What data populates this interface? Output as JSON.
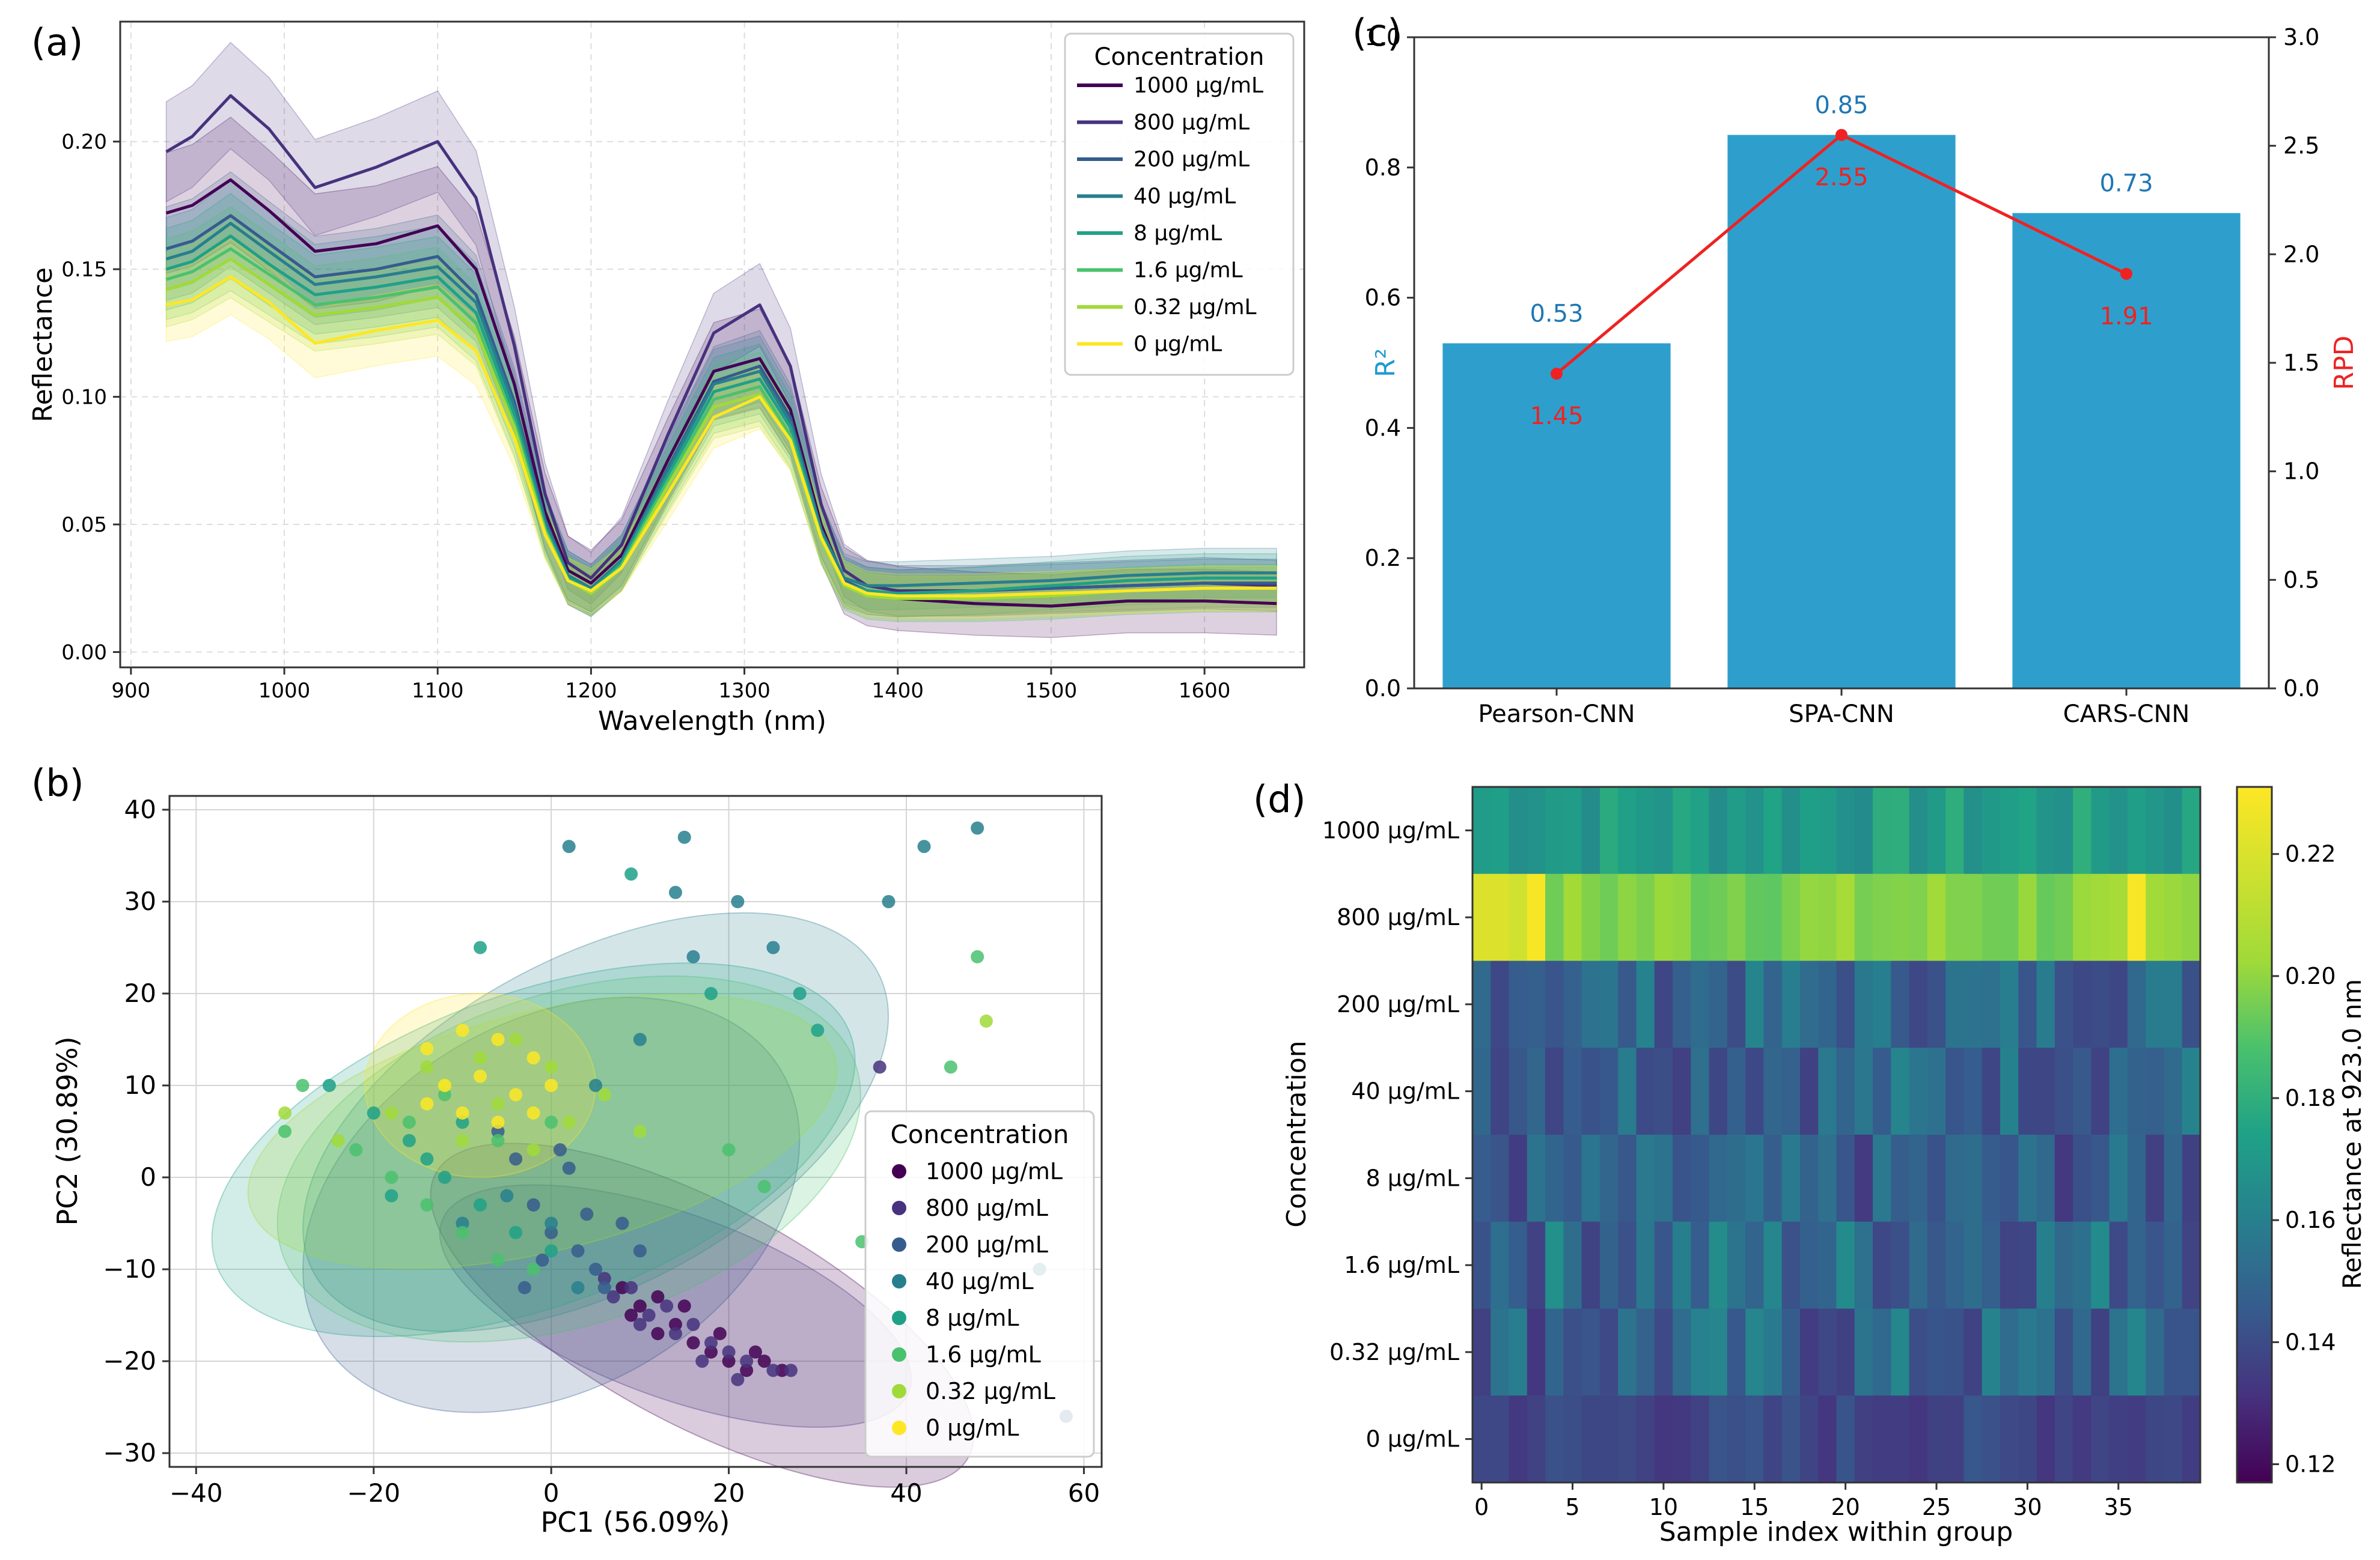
{
  "chart_data": [
    {
      "panel": "(a)",
      "type": "line",
      "xlabel": "Wavelength (nm)",
      "ylabel": "Reflectance",
      "xlim": [
        893,
        1665
      ],
      "ylim": [
        -0.006,
        0.247
      ],
      "xticks": [
        900,
        1000,
        1100,
        1200,
        1300,
        1400,
        1500,
        1600
      ],
      "yticks": [
        0.0,
        0.05,
        0.1,
        0.15,
        0.2
      ],
      "grid": true,
      "legend_title": "Concentration",
      "legend_position": "top-right",
      "x": [
        923,
        940,
        965,
        990,
        1020,
        1060,
        1100,
        1125,
        1150,
        1170,
        1185,
        1200,
        1220,
        1250,
        1280,
        1310,
        1330,
        1350,
        1365,
        1380,
        1400,
        1450,
        1500,
        1550,
        1600,
        1647
      ],
      "series": [
        {
          "name": "1000 µg/mL",
          "color": "#440154",
          "values": [
            0.172,
            0.175,
            0.185,
            0.173,
            0.157,
            0.16,
            0.167,
            0.15,
            0.105,
            0.055,
            0.032,
            0.027,
            0.038,
            0.075,
            0.11,
            0.115,
            0.095,
            0.05,
            0.028,
            0.023,
            0.021,
            0.019,
            0.018,
            0.02,
            0.02,
            0.019
          ],
          "band": 0.022
        },
        {
          "name": "800 µg/mL",
          "color": "#46327e",
          "values": [
            0.196,
            0.202,
            0.218,
            0.205,
            0.182,
            0.19,
            0.2,
            0.178,
            0.12,
            0.062,
            0.035,
            0.029,
            0.042,
            0.085,
            0.125,
            0.136,
            0.112,
            0.058,
            0.032,
            0.026,
            0.024,
            0.024,
            0.025,
            0.026,
            0.027,
            0.026
          ],
          "band": 0.017
        },
        {
          "name": "200 µg/mL",
          "color": "#365c8d",
          "values": [
            0.158,
            0.161,
            0.171,
            0.16,
            0.147,
            0.15,
            0.155,
            0.14,
            0.098,
            0.052,
            0.03,
            0.025,
            0.036,
            0.072,
            0.106,
            0.112,
            0.092,
            0.048,
            0.028,
            0.024,
            0.023,
            0.024,
            0.025,
            0.026,
            0.027,
            0.027
          ],
          "band": 0.016
        },
        {
          "name": "40 µg/mL",
          "color": "#277f8e",
          "values": [
            0.154,
            0.157,
            0.168,
            0.157,
            0.144,
            0.147,
            0.151,
            0.137,
            0.096,
            0.051,
            0.03,
            0.025,
            0.036,
            0.071,
            0.105,
            0.11,
            0.09,
            0.048,
            0.029,
            0.026,
            0.026,
            0.027,
            0.028,
            0.03,
            0.031,
            0.031
          ],
          "band": 0.016
        },
        {
          "name": "8 µg/mL",
          "color": "#1fa187",
          "values": [
            0.15,
            0.153,
            0.163,
            0.152,
            0.14,
            0.143,
            0.147,
            0.133,
            0.093,
            0.049,
            0.029,
            0.024,
            0.035,
            0.069,
            0.102,
            0.107,
            0.088,
            0.046,
            0.027,
            0.024,
            0.023,
            0.024,
            0.026,
            0.028,
            0.029,
            0.029
          ],
          "band": 0.016
        },
        {
          "name": "1.6 µg/mL",
          "color": "#4ac16d",
          "values": [
            0.146,
            0.149,
            0.158,
            0.148,
            0.136,
            0.139,
            0.143,
            0.129,
            0.09,
            0.048,
            0.028,
            0.023,
            0.034,
            0.067,
            0.099,
            0.104,
            0.085,
            0.045,
            0.026,
            0.022,
            0.021,
            0.021,
            0.022,
            0.024,
            0.025,
            0.025
          ],
          "band": 0.016
        },
        {
          "name": "0.32 µg/mL",
          "color": "#a0da39",
          "values": [
            0.142,
            0.145,
            0.154,
            0.144,
            0.132,
            0.135,
            0.139,
            0.126,
            0.088,
            0.047,
            0.028,
            0.023,
            0.033,
            0.065,
            0.096,
            0.101,
            0.083,
            0.044,
            0.026,
            0.022,
            0.021,
            0.021,
            0.022,
            0.024,
            0.025,
            0.025
          ],
          "band": 0.015
        },
        {
          "name": "0 µg/mL",
          "color": "#fde725",
          "values": [
            0.136,
            0.138,
            0.147,
            0.137,
            0.121,
            0.126,
            0.13,
            0.118,
            0.084,
            0.046,
            0.028,
            0.024,
            0.033,
            0.062,
            0.092,
            0.1,
            0.083,
            0.045,
            0.027,
            0.023,
            0.022,
            0.022,
            0.023,
            0.024,
            0.025,
            0.025
          ],
          "band": 0.015
        }
      ]
    },
    {
      "panel": "(b)",
      "type": "scatter",
      "xlabel": "PC1 (56.09%)",
      "ylabel": "PC2 (30.89%)",
      "xlim": [
        -43,
        62
      ],
      "ylim": [
        -31.5,
        41.5
      ],
      "xticks": [
        -40,
        -20,
        0,
        20,
        40,
        60
      ],
      "yticks": [
        -30,
        -20,
        -10,
        0,
        10,
        20,
        30,
        40
      ],
      "xtick_labels": [
        "−40",
        "−20",
        "0",
        "20",
        "40",
        "60"
      ],
      "ytick_labels": [
        "−30",
        "−20",
        "−10",
        "0",
        "10",
        "20",
        "30",
        "40"
      ],
      "grid": true,
      "legend_title": "Concentration",
      "legend_position": "lower-right",
      "series": [
        {
          "name": "1000 µg/mL",
          "color": "#440154",
          "ellipse": {
            "cx": 17,
            "cy": -15,
            "rx": 34,
            "ry": 12,
            "angle": -28
          },
          "points": [
            [
              8,
              -12
            ],
            [
              10,
              -14
            ],
            [
              12,
              -13
            ],
            [
              14,
              -16
            ],
            [
              16,
              -18
            ],
            [
              18,
              -19
            ],
            [
              20,
              -20
            ],
            [
              22,
              -21
            ],
            [
              24,
              -20
            ],
            [
              26,
              -21
            ],
            [
              12,
              -17
            ],
            [
              9,
              -15
            ],
            [
              15,
              -14
            ],
            [
              19,
              -17
            ],
            [
              23,
              -19
            ]
          ]
        },
        {
          "name": "800 µg/mL",
          "color": "#46327e",
          "ellipse": {
            "cx": 14,
            "cy": -14,
            "rx": 28,
            "ry": 10,
            "angle": -20
          },
          "points": [
            [
              6,
              -11
            ],
            [
              9,
              -12
            ],
            [
              11,
              -15
            ],
            [
              13,
              -14
            ],
            [
              16,
              -16
            ],
            [
              18,
              -18
            ],
            [
              20,
              -19
            ],
            [
              22,
              -20
            ],
            [
              25,
              -21
            ],
            [
              27,
              -21
            ],
            [
              7,
              -13
            ],
            [
              10,
              -16
            ],
            [
              14,
              -17
            ],
            [
              17,
              -20
            ],
            [
              21,
              -22
            ],
            [
              37,
              12
            ]
          ]
        },
        {
          "name": "200 µg/mL",
          "color": "#365c8d",
          "ellipse": {
            "cx": 0,
            "cy": -3,
            "rx": 30,
            "ry": 20,
            "angle": 30
          },
          "points": [
            [
              -2,
              -3
            ],
            [
              0,
              -6
            ],
            [
              3,
              -8
            ],
            [
              5,
              -10
            ],
            [
              -4,
              2
            ],
            [
              -6,
              5
            ],
            [
              2,
              1
            ],
            [
              4,
              -4
            ],
            [
              -1,
              -9
            ],
            [
              6,
              -12
            ],
            [
              8,
              -5
            ],
            [
              -3,
              -12
            ],
            [
              1,
              3
            ],
            [
              10,
              -8
            ],
            [
              58,
              -26
            ]
          ]
        },
        {
          "name": "40 µg/mL",
          "color": "#277f8e",
          "ellipse": {
            "cx": 5,
            "cy": 6,
            "rx": 36,
            "ry": 18,
            "angle": 28
          },
          "points": [
            [
              2,
              36
            ],
            [
              15,
              37
            ],
            [
              14,
              31
            ],
            [
              25,
              25
            ],
            [
              38,
              30
            ],
            [
              42,
              36
            ],
            [
              48,
              38
            ],
            [
              21,
              30
            ],
            [
              16,
              24
            ],
            [
              10,
              15
            ],
            [
              5,
              10
            ],
            [
              -5,
              -2
            ],
            [
              0,
              -5
            ],
            [
              3,
              -12
            ],
            [
              -10,
              -5
            ],
            [
              55,
              -10
            ]
          ]
        },
        {
          "name": "8 µg/mL",
          "color": "#1fa187",
          "ellipse": {
            "cx": -2,
            "cy": 3,
            "rx": 38,
            "ry": 17,
            "angle": 20
          },
          "points": [
            [
              9,
              33
            ],
            [
              -8,
              25
            ],
            [
              18,
              20
            ],
            [
              28,
              20
            ],
            [
              30,
              16
            ],
            [
              -25,
              10
            ],
            [
              -20,
              7
            ],
            [
              -16,
              4
            ],
            [
              -12,
              0
            ],
            [
              -8,
              -3
            ],
            [
              -4,
              -6
            ],
            [
              0,
              -8
            ],
            [
              -18,
              -2
            ],
            [
              -14,
              2
            ],
            [
              -10,
              6
            ]
          ]
        },
        {
          "name": "1.6 µg/mL",
          "color": "#4ac16d",
          "ellipse": {
            "cx": 2,
            "cy": 2,
            "rx": 34,
            "ry": 18,
            "angle": 18
          },
          "points": [
            [
              48,
              24
            ],
            [
              45,
              12
            ],
            [
              -28,
              10
            ],
            [
              -30,
              5
            ],
            [
              -22,
              3
            ],
            [
              -18,
              0
            ],
            [
              -14,
              -3
            ],
            [
              -10,
              -6
            ],
            [
              -6,
              -9
            ],
            [
              -2,
              -10
            ],
            [
              -16,
              6
            ],
            [
              -12,
              9
            ],
            [
              -6,
              4
            ],
            [
              0,
              6
            ],
            [
              20,
              3
            ],
            [
              24,
              -1
            ],
            [
              35,
              -7
            ]
          ]
        },
        {
          "name": "0.32 µg/mL",
          "color": "#a0da39",
          "ellipse": {
            "cx": -1,
            "cy": 5,
            "rx": 34,
            "ry": 13,
            "angle": 14
          },
          "points": [
            [
              49,
              17
            ],
            [
              -30,
              7
            ],
            [
              -24,
              4
            ],
            [
              -18,
              7
            ],
            [
              -12,
              10
            ],
            [
              -8,
              13
            ],
            [
              -4,
              15
            ],
            [
              0,
              12
            ],
            [
              -6,
              8
            ],
            [
              -10,
              4
            ],
            [
              2,
              6
            ],
            [
              6,
              9
            ],
            [
              10,
              5
            ],
            [
              -14,
              12
            ],
            [
              -2,
              3
            ]
          ]
        },
        {
          "name": "0 µg/mL",
          "color": "#fde725",
          "ellipse": {
            "cx": -8,
            "cy": 10,
            "rx": 13,
            "ry": 10,
            "angle": 0
          },
          "points": [
            [
              -14,
              14
            ],
            [
              -10,
              16
            ],
            [
              -6,
              15
            ],
            [
              -2,
              13
            ],
            [
              -12,
              10
            ],
            [
              -8,
              11
            ],
            [
              -4,
              9
            ],
            [
              0,
              10
            ],
            [
              -10,
              7
            ],
            [
              -6,
              6
            ],
            [
              -2,
              7
            ],
            [
              -14,
              8
            ]
          ]
        }
      ]
    },
    {
      "panel": "(c)",
      "type": "bar",
      "categories": [
        "Pearson-CNN",
        "SPA-CNN",
        "CARS-CNN"
      ],
      "series": [
        {
          "name": "R²",
          "axis": "left",
          "color": "#2e9fcd",
          "label_color": "#1f77b4",
          "values": [
            0.53,
            0.85,
            0.73
          ],
          "labels": [
            "0.53",
            "0.85",
            "0.73"
          ]
        },
        {
          "name": "RPD",
          "axis": "right",
          "type": "line",
          "color": "#ee2222",
          "values": [
            1.45,
            2.55,
            1.91
          ],
          "labels": [
            "1.45",
            "2.55",
            "1.91"
          ]
        }
      ],
      "ylabel": "R²",
      "ylabel_right": "RPD",
      "ylim": [
        0,
        1.0
      ],
      "ylim_right": [
        0,
        3.0
      ],
      "yticks": [
        0.0,
        0.2,
        0.4,
        0.6,
        0.8,
        1.0
      ],
      "yticks_right": [
        0.0,
        0.5,
        1.0,
        1.5,
        2.0,
        2.5,
        3.0
      ]
    },
    {
      "panel": "(d)",
      "type": "heatmap",
      "xlabel": "Sample index within group",
      "ylabel": "Concentration",
      "colorbar_label": "Reflectance at 923.0 nm",
      "colorbar_range": [
        0.117,
        0.231
      ],
      "colorbar_ticks": [
        0.12,
        0.14,
        0.16,
        0.18,
        0.2,
        0.22
      ],
      "xticks": [
        0,
        5,
        10,
        15,
        20,
        25,
        30,
        35
      ],
      "n_columns": 40,
      "rows": [
        "1000 µg/mL",
        "800 µg/mL",
        "200 µg/mL",
        "40 µg/mL",
        "8 µg/mL",
        "1.6 µg/mL",
        "0.32 µg/mL",
        "0 µg/mL"
      ],
      "row_means": [
        0.172,
        0.198,
        0.15,
        0.15,
        0.145,
        0.152,
        0.148,
        0.138
      ],
      "row_spread": [
        0.008,
        0.007,
        0.012,
        0.014,
        0.013,
        0.016,
        0.016,
        0.006
      ]
    }
  ],
  "panel_labels": [
    "(a)",
    "(b)",
    "(c)",
    "(d)"
  ]
}
